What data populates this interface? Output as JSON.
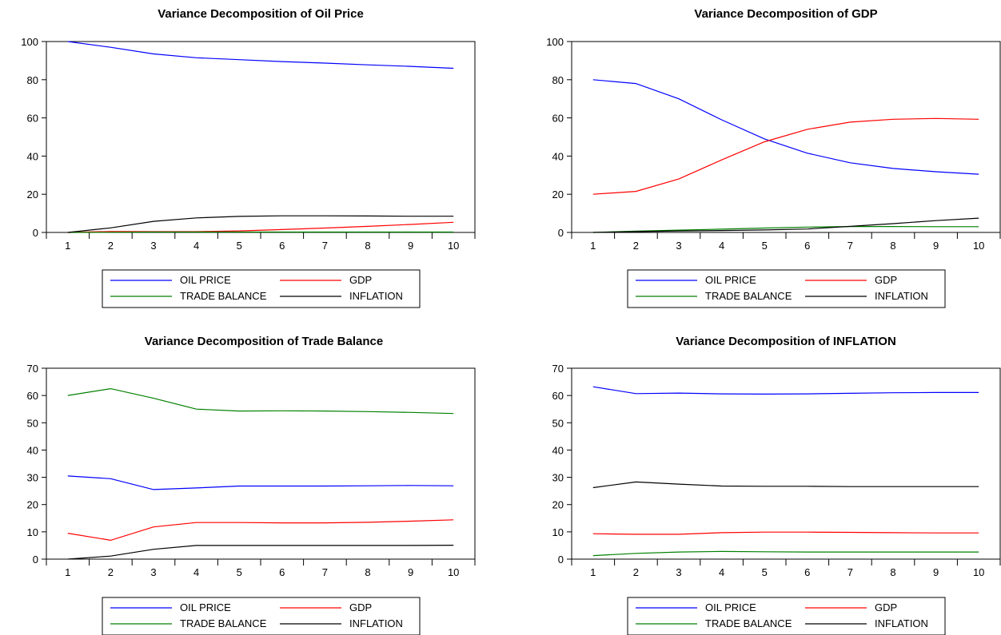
{
  "chart_data": [
    {
      "type": "line",
      "title": "Variance Decomposition of Oil Price",
      "x": [
        1,
        2,
        3,
        4,
        5,
        6,
        7,
        8,
        9,
        10
      ],
      "ylim": [
        0,
        100
      ],
      "yticks": [
        0,
        20,
        40,
        60,
        80,
        100
      ],
      "legend_position": "bottom",
      "series": [
        {
          "name": "OIL PRICE",
          "color": "#0000ff",
          "values": [
            100,
            97,
            93.5,
            91.5,
            90.5,
            89.5,
            88.7,
            87.8,
            87,
            86
          ]
        },
        {
          "name": "GDP",
          "color": "#ff0000",
          "values": [
            0,
            0.5,
            0.4,
            0.4,
            0.8,
            1.5,
            2.3,
            3.2,
            4.2,
            5.3
          ]
        },
        {
          "name": "TRADE BALANCE",
          "color": "#008000",
          "values": [
            0,
            0.1,
            0.2,
            0.2,
            0.2,
            0.2,
            0.2,
            0.2,
            0.2,
            0.2
          ]
        },
        {
          "name": "INFLATION",
          "color": "#000000",
          "values": [
            0,
            2.4,
            5.8,
            7.6,
            8.4,
            8.7,
            8.7,
            8.6,
            8.5,
            8.5
          ]
        }
      ]
    },
    {
      "type": "line",
      "title": "Variance Decomposition of GDP",
      "x": [
        1,
        2,
        3,
        4,
        5,
        6,
        7,
        8,
        9,
        10
      ],
      "ylim": [
        0,
        100
      ],
      "yticks": [
        0,
        20,
        40,
        60,
        80,
        100
      ],
      "legend_position": "bottom",
      "series": [
        {
          "name": "OIL PRICE",
          "color": "#0000ff",
          "values": [
            80,
            78,
            70,
            59,
            49,
            41.5,
            36.5,
            33.5,
            31.8,
            30.5
          ]
        },
        {
          "name": "GDP",
          "color": "#ff0000",
          "values": [
            20,
            21.5,
            28,
            38,
            47.5,
            54,
            57.8,
            59.3,
            59.7,
            59.3
          ]
        },
        {
          "name": "TRADE BALANCE",
          "color": "#008000",
          "values": [
            0,
            0.7,
            1.2,
            1.7,
            2.3,
            2.8,
            3.1,
            3.1,
            3.0,
            3.0
          ]
        },
        {
          "name": "INFLATION",
          "color": "#000000",
          "values": [
            0,
            0.4,
            0.8,
            1.0,
            1.3,
            1.8,
            3.2,
            4.6,
            6.2,
            7.5
          ]
        }
      ]
    },
    {
      "type": "line",
      "title": "Variance Decomposition of Trade Balance",
      "x": [
        1,
        2,
        3,
        4,
        5,
        6,
        7,
        8,
        9,
        10
      ],
      "ylim": [
        0,
        70
      ],
      "yticks": [
        0,
        10,
        20,
        30,
        40,
        50,
        60,
        70
      ],
      "legend_position": "bottom",
      "series": [
        {
          "name": "OIL PRICE",
          "color": "#0000ff",
          "values": [
            30.5,
            29.5,
            25.5,
            26.1,
            26.8,
            26.8,
            26.8,
            26.9,
            27.0,
            26.9
          ]
        },
        {
          "name": "GDP",
          "color": "#ff0000",
          "values": [
            9.5,
            6.9,
            11.8,
            13.4,
            13.4,
            13.3,
            13.3,
            13.5,
            13.9,
            14.4
          ]
        },
        {
          "name": "TRADE BALANCE",
          "color": "#008000",
          "values": [
            60,
            62.5,
            59,
            55,
            54.3,
            54.4,
            54.3,
            54.1,
            53.8,
            53.4
          ]
        },
        {
          "name": "INFLATION",
          "color": "#000000",
          "values": [
            0,
            1.1,
            3.6,
            5.0,
            5.0,
            5.0,
            5.0,
            5.0,
            5.0,
            5.1
          ]
        }
      ]
    },
    {
      "type": "line",
      "title": "Variance Decomposition of INFLATION",
      "x": [
        1,
        2,
        3,
        4,
        5,
        6,
        7,
        8,
        9,
        10
      ],
      "ylim": [
        0,
        70
      ],
      "yticks": [
        0,
        10,
        20,
        30,
        40,
        50,
        60,
        70
      ],
      "legend_position": "bottom",
      "series": [
        {
          "name": "OIL PRICE",
          "color": "#0000ff",
          "values": [
            63.2,
            60.7,
            60.9,
            60.6,
            60.5,
            60.6,
            60.8,
            61.0,
            61.1,
            61.1
          ]
        },
        {
          "name": "GDP",
          "color": "#ff0000",
          "values": [
            9.3,
            9.1,
            9.1,
            9.7,
            9.9,
            9.9,
            9.8,
            9.7,
            9.6,
            9.6
          ]
        },
        {
          "name": "TRADE BALANCE",
          "color": "#008000",
          "values": [
            1.3,
            2.1,
            2.6,
            2.8,
            2.7,
            2.6,
            2.6,
            2.6,
            2.6,
            2.6
          ]
        },
        {
          "name": "INFLATION",
          "color": "#000000",
          "values": [
            26.2,
            28.3,
            27.5,
            26.8,
            26.7,
            26.7,
            26.6,
            26.6,
            26.6,
            26.6
          ]
        }
      ]
    }
  ]
}
